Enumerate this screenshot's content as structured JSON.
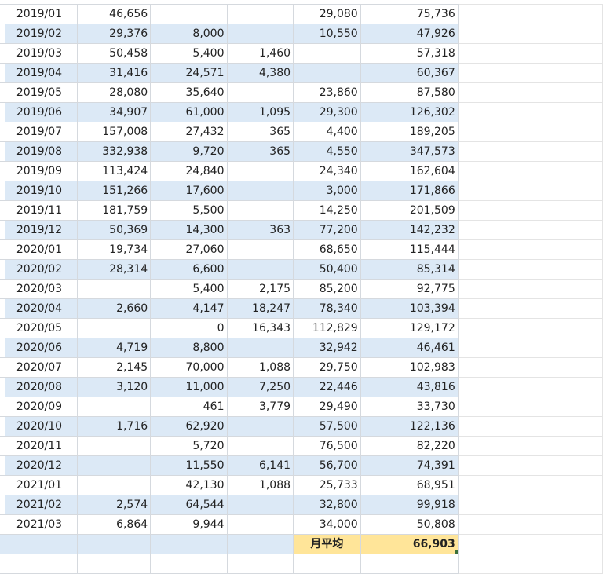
{
  "rows": [
    {
      "month": "2019/01",
      "c1": "46,656",
      "c2": "",
      "c3": "",
      "c4": "29,080",
      "c5": "75,736"
    },
    {
      "month": "2019/02",
      "c1": "29,376",
      "c2": "8,000",
      "c3": "",
      "c4": "10,550",
      "c5": "47,926"
    },
    {
      "month": "2019/03",
      "c1": "50,458",
      "c2": "5,400",
      "c3": "1,460",
      "c4": "",
      "c5": "57,318"
    },
    {
      "month": "2019/04",
      "c1": "31,416",
      "c2": "24,571",
      "c3": "4,380",
      "c4": "",
      "c5": "60,367"
    },
    {
      "month": "2019/05",
      "c1": "28,080",
      "c2": "35,640",
      "c3": "",
      "c4": "23,860",
      "c5": "87,580"
    },
    {
      "month": "2019/06",
      "c1": "34,907",
      "c2": "61,000",
      "c3": "1,095",
      "c4": "29,300",
      "c5": "126,302"
    },
    {
      "month": "2019/07",
      "c1": "157,008",
      "c2": "27,432",
      "c3": "365",
      "c4": "4,400",
      "c5": "189,205"
    },
    {
      "month": "2019/08",
      "c1": "332,938",
      "c2": "9,720",
      "c3": "365",
      "c4": "4,550",
      "c5": "347,573"
    },
    {
      "month": "2019/09",
      "c1": "113,424",
      "c2": "24,840",
      "c3": "",
      "c4": "24,340",
      "c5": "162,604"
    },
    {
      "month": "2019/10",
      "c1": "151,266",
      "c2": "17,600",
      "c3": "",
      "c4": "3,000",
      "c5": "171,866"
    },
    {
      "month": "2019/11",
      "c1": "181,759",
      "c2": "5,500",
      "c3": "",
      "c4": "14,250",
      "c5": "201,509"
    },
    {
      "month": "2019/12",
      "c1": "50,369",
      "c2": "14,300",
      "c3": "363",
      "c4": "77,200",
      "c5": "142,232"
    },
    {
      "month": "2020/01",
      "c1": "19,734",
      "c2": "27,060",
      "c3": "",
      "c4": "68,650",
      "c5": "115,444"
    },
    {
      "month": "2020/02",
      "c1": "28,314",
      "c2": "6,600",
      "c3": "",
      "c4": "50,400",
      "c5": "85,314"
    },
    {
      "month": "2020/03",
      "c1": "",
      "c2": "5,400",
      "c3": "2,175",
      "c4": "85,200",
      "c5": "92,775"
    },
    {
      "month": "2020/04",
      "c1": "2,660",
      "c2": "4,147",
      "c3": "18,247",
      "c4": "78,340",
      "c5": "103,394"
    },
    {
      "month": "2020/05",
      "c1": "",
      "c2": "0",
      "c3": "16,343",
      "c4": "112,829",
      "c5": "129,172"
    },
    {
      "month": "2020/06",
      "c1": "4,719",
      "c2": "8,800",
      "c3": "",
      "c4": "32,942",
      "c5": "46,461"
    },
    {
      "month": "2020/07",
      "c1": "2,145",
      "c2": "70,000",
      "c3": "1,088",
      "c4": "29,750",
      "c5": "102,983"
    },
    {
      "month": "2020/08",
      "c1": "3,120",
      "c2": "11,000",
      "c3": "7,250",
      "c4": "22,446",
      "c5": "43,816"
    },
    {
      "month": "2020/09",
      "c1": "",
      "c2": "461",
      "c3": "3,779",
      "c4": "29,490",
      "c5": "33,730"
    },
    {
      "month": "2020/10",
      "c1": "1,716",
      "c2": "62,920",
      "c3": "",
      "c4": "57,500",
      "c5": "122,136"
    },
    {
      "month": "2020/11",
      "c1": "",
      "c2": "5,720",
      "c3": "",
      "c4": "76,500",
      "c5": "82,220"
    },
    {
      "month": "2020/12",
      "c1": "",
      "c2": "11,550",
      "c3": "6,141",
      "c4": "56,700",
      "c5": "74,391"
    },
    {
      "month": "2021/01",
      "c1": "",
      "c2": "42,130",
      "c3": "1,088",
      "c4": "25,733",
      "c5": "68,951"
    },
    {
      "month": "2021/02",
      "c1": "2,574",
      "c2": "64,544",
      "c3": "",
      "c4": "32,800",
      "c5": "99,918"
    },
    {
      "month": "2021/03",
      "c1": "6,864",
      "c2": "9,944",
      "c3": "",
      "c4": "34,000",
      "c5": "50,808"
    }
  ],
  "total": {
    "label": "月平均",
    "value": "66,903"
  },
  "colors": {
    "band": "#dce9f6",
    "highlight": "#ffe599",
    "grid": "#d5d9de"
  }
}
